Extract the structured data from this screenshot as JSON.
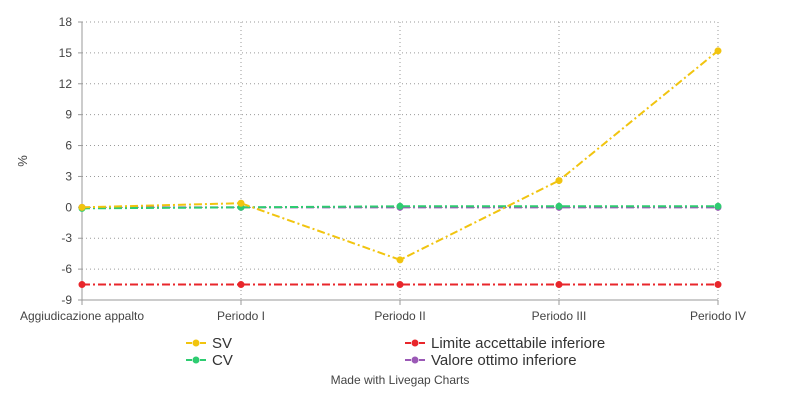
{
  "chart_data": {
    "type": "line",
    "title": "",
    "xlabel": "",
    "ylabel": "%",
    "categories": [
      "Aggiudicazione appalto",
      "Periodo I",
      "Periodo II",
      "Periodo III",
      "Periodo IV"
    ],
    "ylim": [
      -9,
      18
    ],
    "yticks": [
      -9,
      -6,
      -3,
      0,
      3,
      6,
      9,
      12,
      15,
      18
    ],
    "grid": "dotted",
    "legend_position": "bottom",
    "series": [
      {
        "name": "SV",
        "color": "#f1c40f",
        "values": [
          0,
          0.4,
          -5.1,
          2.6,
          15.2
        ]
      },
      {
        "name": "CV",
        "color": "#2ecc71",
        "values": [
          -0.1,
          0,
          0.1,
          0.1,
          0.1
        ]
      },
      {
        "name": "Limite accettabile inferiore",
        "color": "#e8262b",
        "values": [
          -7.5,
          -7.5,
          -7.5,
          -7.5,
          -7.5
        ]
      },
      {
        "name": "Valore ottimo inferiore",
        "color": "#9b59b6",
        "values": [
          0,
          0,
          0,
          0,
          0
        ]
      }
    ]
  },
  "credit": "Made with Livegap Charts"
}
